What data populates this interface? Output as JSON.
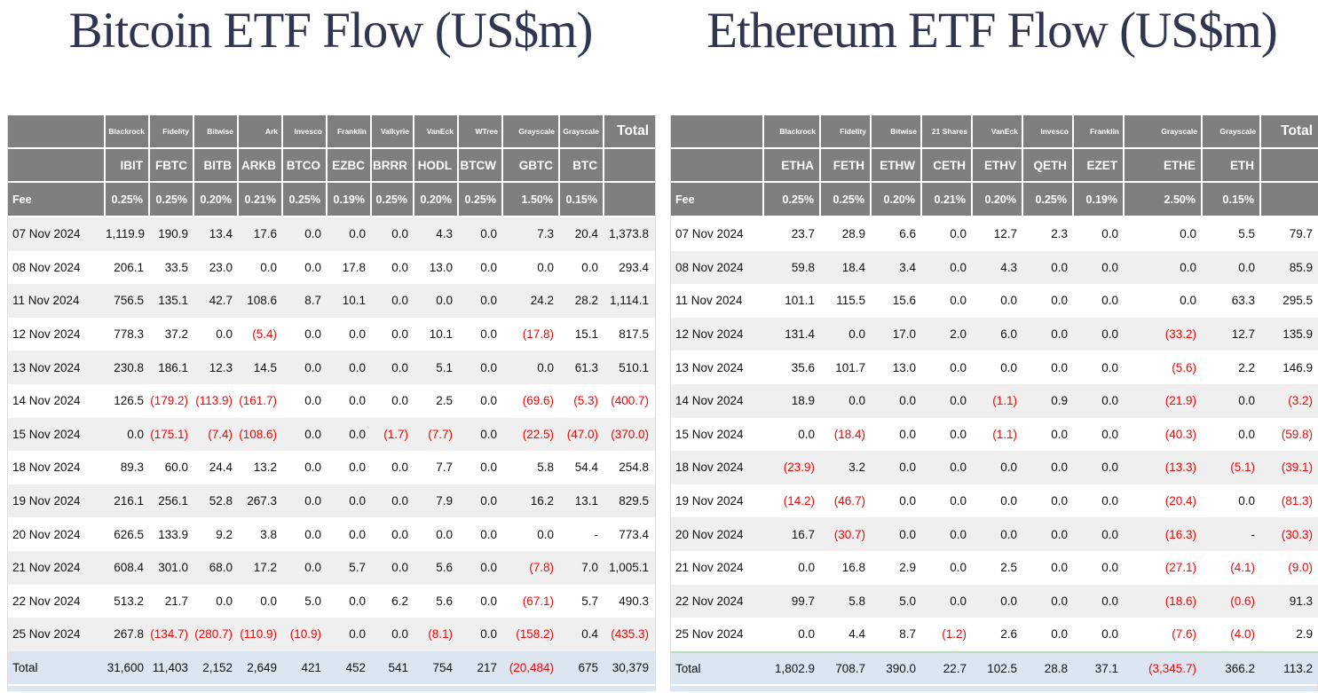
{
  "styles": {
    "header_bg": "#7f7f7f",
    "stripe_bg": "#efefef",
    "total_row_bg": "#dce6f1",
    "negative_color": "#ff0000",
    "title_color": "#303650"
  },
  "chart_data": [
    {
      "type": "table",
      "title": "Bitcoin ETF Flow (US$m)",
      "providers": [
        "Blackrock",
        "Fidelity",
        "Bitwise",
        "Ark",
        "Invesco",
        "Franklin",
        "Valkyrie",
        "VanEck",
        "WTree",
        "Grayscale",
        "Grayscale"
      ],
      "total_header": "Total",
      "tickers": [
        "IBIT",
        "FBTC",
        "BITB",
        "ARKB",
        "BTCO",
        "EZBC",
        "BRRR",
        "HODL",
        "BTCW",
        "GBTC",
        "BTC"
      ],
      "fee_label": "Fee",
      "fees": [
        "0.25%",
        "0.25%",
        "0.20%",
        "0.21%",
        "0.25%",
        "0.19%",
        "0.25%",
        "0.20%",
        "0.25%",
        "1.50%",
        "0.15%"
      ],
      "date_rows": [
        {
          "date": "07 Nov 2024",
          "values": [
            "1,119.9",
            "190.9",
            "13.4",
            "17.6",
            "0.0",
            "0.0",
            "0.0",
            "4.3",
            "0.0",
            "7.3",
            "20.4",
            "1,373.8"
          ]
        },
        {
          "date": "08 Nov 2024",
          "values": [
            "206.1",
            "33.5",
            "23.0",
            "0.0",
            "0.0",
            "17.8",
            "0.0",
            "13.0",
            "0.0",
            "0.0",
            "0.0",
            "293.4"
          ]
        },
        {
          "date": "11 Nov 2024",
          "values": [
            "756.5",
            "135.1",
            "42.7",
            "108.6",
            "8.7",
            "10.1",
            "0.0",
            "0.0",
            "0.0",
            "24.2",
            "28.2",
            "1,114.1"
          ]
        },
        {
          "date": "12 Nov 2024",
          "values": [
            "778.3",
            "37.2",
            "0.0",
            "(5.4)",
            "0.0",
            "0.0",
            "0.0",
            "10.1",
            "0.0",
            "(17.8)",
            "15.1",
            "817.5"
          ]
        },
        {
          "date": "13 Nov 2024",
          "values": [
            "230.8",
            "186.1",
            "12.3",
            "14.5",
            "0.0",
            "0.0",
            "0.0",
            "5.1",
            "0.0",
            "0.0",
            "61.3",
            "510.1"
          ]
        },
        {
          "date": "14 Nov 2024",
          "values": [
            "126.5",
            "(179.2)",
            "(113.9)",
            "(161.7)",
            "0.0",
            "0.0",
            "0.0",
            "2.5",
            "0.0",
            "(69.6)",
            "(5.3)",
            "(400.7)"
          ]
        },
        {
          "date": "15 Nov 2024",
          "values": [
            "0.0",
            "(175.1)",
            "(7.4)",
            "(108.6)",
            "0.0",
            "0.0",
            "(1.7)",
            "(7.7)",
            "0.0",
            "(22.5)",
            "(47.0)",
            "(370.0)"
          ]
        },
        {
          "date": "18 Nov 2024",
          "values": [
            "89.3",
            "60.0",
            "24.4",
            "13.2",
            "0.0",
            "0.0",
            "0.0",
            "7.7",
            "0.0",
            "5.8",
            "54.4",
            "254.8"
          ]
        },
        {
          "date": "19 Nov 2024",
          "values": [
            "216.1",
            "256.1",
            "52.8",
            "267.3",
            "0.0",
            "0.0",
            "0.0",
            "7.9",
            "0.0",
            "16.2",
            "13.1",
            "829.5"
          ]
        },
        {
          "date": "20 Nov 2024",
          "values": [
            "626.5",
            "133.9",
            "9.2",
            "3.8",
            "0.0",
            "0.0",
            "0.0",
            "0.0",
            "0.0",
            "0.0",
            "-",
            "773.4"
          ]
        },
        {
          "date": "21 Nov 2024",
          "values": [
            "608.4",
            "301.0",
            "68.0",
            "17.2",
            "0.0",
            "5.7",
            "0.0",
            "5.6",
            "0.0",
            "(7.8)",
            "7.0",
            "1,005.1"
          ]
        },
        {
          "date": "22 Nov 2024",
          "values": [
            "513.2",
            "21.7",
            "0.0",
            "0.0",
            "5.0",
            "0.0",
            "6.2",
            "5.6",
            "0.0",
            "(67.1)",
            "5.7",
            "490.3"
          ]
        },
        {
          "date": "25 Nov 2024",
          "values": [
            "267.8",
            "(134.7)",
            "(280.7)",
            "(110.9)",
            "(10.9)",
            "0.0",
            "0.0",
            "(8.1)",
            "0.0",
            "(158.2)",
            "0.4",
            "(435.3)"
          ]
        }
      ],
      "total_row": {
        "label": "Total",
        "values": [
          "31,600",
          "11,403",
          "2,152",
          "2,649",
          "421",
          "452",
          "541",
          "754",
          "217",
          "(20,484)",
          "675",
          "30,379"
        ]
      }
    },
    {
      "type": "table",
      "title": "Ethereum ETF Flow (US$m)",
      "providers": [
        "Blackrock",
        "Fidelity",
        "Bitwise",
        "21 Shares",
        "VanEck",
        "Invesco",
        "Franklin",
        "Grayscale",
        "Grayscale"
      ],
      "total_header": "Total",
      "tickers": [
        "ETHA",
        "FETH",
        "ETHW",
        "CETH",
        "ETHV",
        "QETH",
        "EZET",
        "ETHE",
        "ETH"
      ],
      "fee_label": "Fee",
      "fees": [
        "0.25%",
        "0.25%",
        "0.20%",
        "0.21%",
        "0.20%",
        "0.25%",
        "0.19%",
        "2.50%",
        "0.15%"
      ],
      "date_rows": [
        {
          "date": "07 Nov 2024",
          "values": [
            "23.7",
            "28.9",
            "6.6",
            "0.0",
            "12.7",
            "2.3",
            "0.0",
            "0.0",
            "5.5",
            "79.7"
          ]
        },
        {
          "date": "08 Nov 2024",
          "values": [
            "59.8",
            "18.4",
            "3.4",
            "0.0",
            "4.3",
            "0.0",
            "0.0",
            "0.0",
            "0.0",
            "85.9"
          ]
        },
        {
          "date": "11 Nov 2024",
          "values": [
            "101.1",
            "115.5",
            "15.6",
            "0.0",
            "0.0",
            "0.0",
            "0.0",
            "0.0",
            "63.3",
            "295.5"
          ]
        },
        {
          "date": "12 Nov 2024",
          "values": [
            "131.4",
            "0.0",
            "17.0",
            "2.0",
            "6.0",
            "0.0",
            "0.0",
            "(33.2)",
            "12.7",
            "135.9"
          ]
        },
        {
          "date": "13 Nov 2024",
          "values": [
            "35.6",
            "101.7",
            "13.0",
            "0.0",
            "0.0",
            "0.0",
            "0.0",
            "(5.6)",
            "2.2",
            "146.9"
          ]
        },
        {
          "date": "14 Nov 2024",
          "values": [
            "18.9",
            "0.0",
            "0.0",
            "0.0",
            "(1.1)",
            "0.9",
            "0.0",
            "(21.9)",
            "0.0",
            "(3.2)"
          ]
        },
        {
          "date": "15 Nov 2024",
          "values": [
            "0.0",
            "(18.4)",
            "0.0",
            "0.0",
            "(1.1)",
            "0.0",
            "0.0",
            "(40.3)",
            "0.0",
            "(59.8)"
          ]
        },
        {
          "date": "18 Nov 2024",
          "values": [
            "(23.9)",
            "3.2",
            "0.0",
            "0.0",
            "0.0",
            "0.0",
            "0.0",
            "(13.3)",
            "(5.1)",
            "(39.1)"
          ]
        },
        {
          "date": "19 Nov 2024",
          "values": [
            "(14.2)",
            "(46.7)",
            "0.0",
            "0.0",
            "0.0",
            "0.0",
            "0.0",
            "(20.4)",
            "0.0",
            "(81.3)"
          ]
        },
        {
          "date": "20 Nov 2024",
          "values": [
            "16.7",
            "(30.7)",
            "0.0",
            "0.0",
            "0.0",
            "0.0",
            "0.0",
            "(16.3)",
            "-",
            "(30.3)"
          ]
        },
        {
          "date": "21 Nov 2024",
          "values": [
            "0.0",
            "16.8",
            "2.9",
            "0.0",
            "2.5",
            "0.0",
            "0.0",
            "(27.1)",
            "(4.1)",
            "(9.0)"
          ]
        },
        {
          "date": "22 Nov 2024",
          "values": [
            "99.7",
            "5.8",
            "5.0",
            "0.0",
            "0.0",
            "0.0",
            "0.0",
            "(18.6)",
            "(0.6)",
            "91.3"
          ]
        },
        {
          "date": "25 Nov 2024",
          "values": [
            "0.0",
            "4.4",
            "8.7",
            "(1.2)",
            "2.6",
            "0.0",
            "0.0",
            "(7.6)",
            "(4.0)",
            "2.9"
          ]
        }
      ],
      "total_row": {
        "label": "Total",
        "values": [
          "1,802.9",
          "708.7",
          "390.0",
          "22.7",
          "102.5",
          "28.8",
          "37.1",
          "(3,345.7)",
          "366.2",
          "113.2"
        ]
      }
    }
  ]
}
